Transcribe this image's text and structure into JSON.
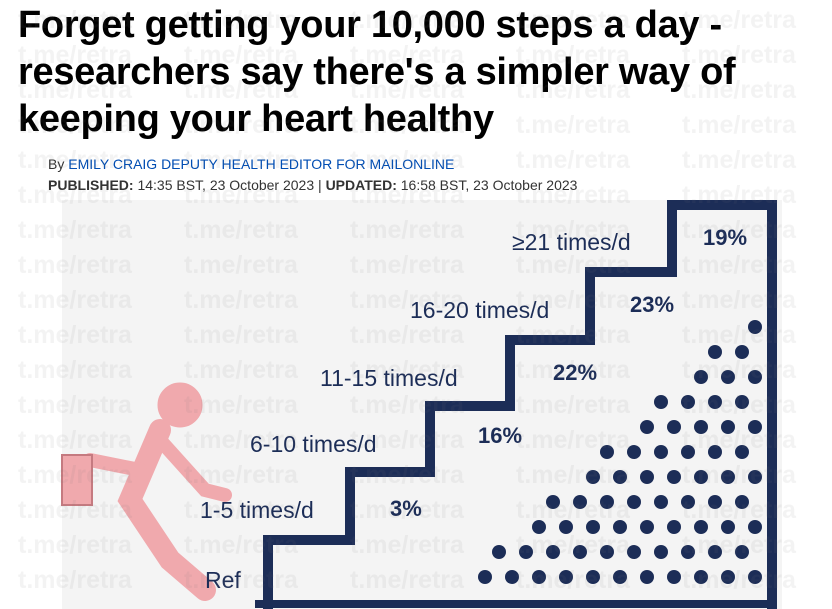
{
  "headline": "Forget getting your 10,000 steps a day - researchers say there's a simpler way of keeping your heart healthy",
  "byline": {
    "prefix": "By",
    "author": "EMILY CRAIG DEPUTY HEALTH EDITOR FOR MAILONLINE"
  },
  "dates": {
    "published_label": "PUBLISHED:",
    "published": "14:35 BST, 23 October 2023",
    "separator": "|",
    "updated_label": "UPDATED:",
    "updated": "16:58 BST, 23 October 2023"
  },
  "infographic": {
    "steps": [
      {
        "label": "Ref",
        "value": null
      },
      {
        "label": "1-5 times/d",
        "value": "3%"
      },
      {
        "label": "6-10 times/d",
        "value": "16%"
      },
      {
        "label": "11-15 times/d",
        "value": "22%"
      },
      {
        "label": "16-20 times/d",
        "value": "23%"
      },
      {
        "label": "≥21 times/d",
        "value": "19%"
      }
    ]
  },
  "watermark": "t.me/retra"
}
